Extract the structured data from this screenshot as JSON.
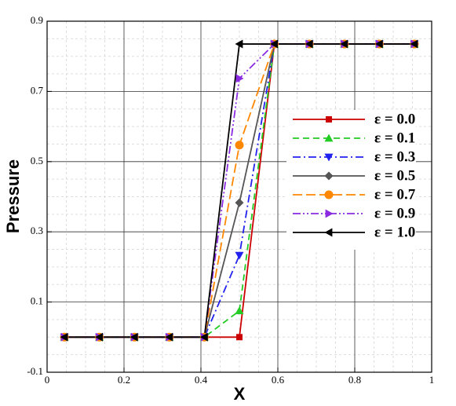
{
  "chart_data": {
    "type": "line",
    "x_label": "X",
    "y_label": "Pressure",
    "x": [
      0.045,
      0.136,
      0.227,
      0.318,
      0.409,
      0.5,
      0.591,
      0.682,
      0.773,
      0.864,
      0.955
    ],
    "series": [
      {
        "name": "ε = 0.0",
        "color": "#cc0000",
        "dash": "",
        "marker": "square",
        "values": [
          0,
          0,
          0,
          0,
          0,
          0,
          0.835,
          0.835,
          0.835,
          0.835,
          0.835
        ]
      },
      {
        "name": "ε = 0.1",
        "color": "#22cc22",
        "dash": "8 5",
        "marker": "triangle-up",
        "values": [
          0,
          0,
          0,
          0,
          0,
          0.075,
          0.835,
          0.835,
          0.835,
          0.835,
          0.835
        ]
      },
      {
        "name": "ε = 0.3",
        "color": "#2222ee",
        "dash": "10 4 2 4",
        "marker": "triangle-down",
        "values": [
          0,
          0,
          0,
          0,
          0,
          0.233,
          0.835,
          0.835,
          0.835,
          0.835,
          0.835
        ]
      },
      {
        "name": "ε = 0.5",
        "color": "#555555",
        "dash": "",
        "marker": "diamond",
        "values": [
          0,
          0,
          0,
          0,
          0,
          0.383,
          0.835,
          0.835,
          0.835,
          0.835,
          0.835
        ]
      },
      {
        "name": "ε = 0.7",
        "color": "#ff8800",
        "dash": "12 5",
        "marker": "circle",
        "values": [
          0,
          0,
          0,
          0,
          0,
          0.547,
          0.835,
          0.835,
          0.835,
          0.835,
          0.835
        ]
      },
      {
        "name": "ε = 0.9",
        "color": "#8a2be2",
        "dash": "10 3 2 3 2 3",
        "marker": "triangle-right",
        "values": [
          0,
          0,
          0,
          0,
          0,
          0.737,
          0.835,
          0.835,
          0.835,
          0.835,
          0.835
        ]
      },
      {
        "name": "ε = 1.0",
        "color": "#000000",
        "dash": "",
        "marker": "triangle-left",
        "values": [
          0,
          0,
          0,
          0,
          0,
          0.835,
          0.835,
          0.835,
          0.835,
          0.835,
          0.835
        ]
      }
    ],
    "xlim": [
      0,
      1
    ],
    "xticks": [
      0,
      0.2,
      0.4,
      0.6,
      0.8,
      1
    ],
    "ylim": [
      -0.1,
      0.9
    ],
    "yticks": [
      -0.1,
      0.1,
      0.3,
      0.5,
      0.7,
      0.9
    ],
    "grid": true,
    "legend": "right"
  }
}
